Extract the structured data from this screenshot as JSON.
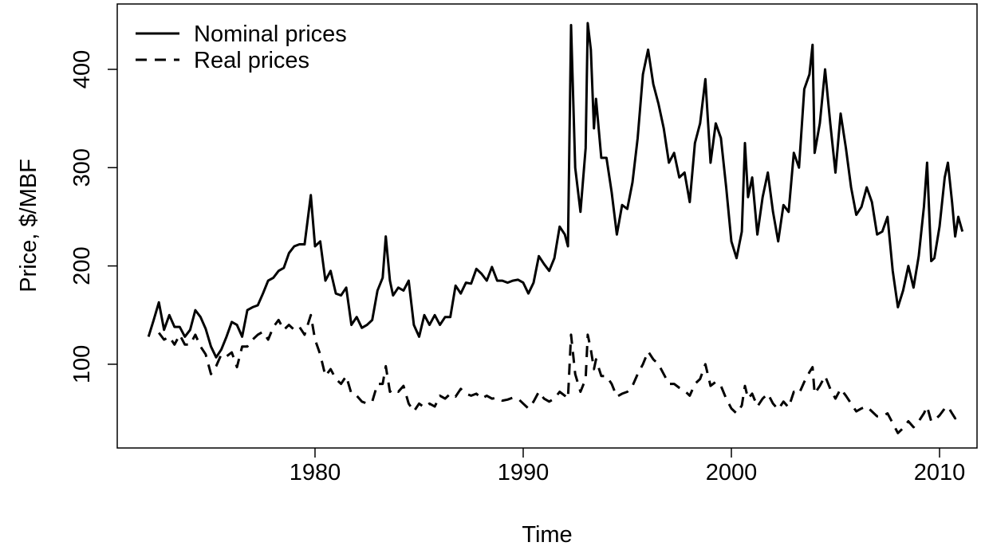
{
  "chart_data": {
    "type": "line",
    "x_label": "Time",
    "y_label": "Price, $/MBF",
    "xlim": [
      1970.5,
      2011.8
    ],
    "ylim": [
      14.8,
      466.5
    ],
    "xticks": [
      1980,
      1990,
      2000,
      2010
    ],
    "yticks": [
      100,
      200,
      300,
      400
    ],
    "legend": "top-left",
    "grid": false,
    "x": [
      1972,
      1972.25,
      1972.5,
      1972.75,
      1973,
      1973.25,
      1973.5,
      1973.75,
      1974,
      1974.25,
      1974.5,
      1974.75,
      1975,
      1975.25,
      1975.5,
      1975.75,
      1976,
      1976.25,
      1976.5,
      1976.75,
      1977,
      1977.25,
      1977.5,
      1977.75,
      1978,
      1978.25,
      1978.5,
      1978.75,
      1979,
      1979.25,
      1979.5,
      1979.8,
      1980,
      1980.25,
      1980.5,
      1980.75,
      1981,
      1981.25,
      1981.5,
      1981.75,
      1982,
      1982.25,
      1982.5,
      1982.75,
      1983,
      1983.25,
      1983.4,
      1983.6,
      1983.75,
      1984,
      1984.25,
      1984.5,
      1984.75,
      1985,
      1985.25,
      1985.5,
      1985.75,
      1986,
      1986.25,
      1986.5,
      1986.75,
      1987,
      1987.25,
      1987.5,
      1987.75,
      1988,
      1988.25,
      1988.5,
      1988.75,
      1989,
      1989.25,
      1989.5,
      1989.75,
      1990,
      1990.25,
      1990.5,
      1990.75,
      1991,
      1991.25,
      1991.5,
      1991.75,
      1992,
      1992.15,
      1992.3,
      1992.5,
      1992.75,
      1993,
      1993.1,
      1993.25,
      1993.4,
      1993.5,
      1993.75,
      1994,
      1994.25,
      1994.5,
      1994.75,
      1995,
      1995.25,
      1995.5,
      1995.75,
      1996,
      1996.25,
      1996.5,
      1996.75,
      1997,
      1997.25,
      1997.5,
      1997.75,
      1998,
      1998.25,
      1998.5,
      1998.75,
      1999,
      1999.25,
      1999.5,
      1999.75,
      2000,
      2000.25,
      2000.5,
      2000.65,
      2000.8,
      2001,
      2001.25,
      2001.5,
      2001.75,
      2002,
      2002.25,
      2002.5,
      2002.75,
      2003,
      2003.25,
      2003.5,
      2003.75,
      2003.9,
      2004,
      2004.25,
      2004.5,
      2004.75,
      2005,
      2005.25,
      2005.5,
      2005.75,
      2006,
      2006.25,
      2006.5,
      2006.75,
      2007,
      2007.25,
      2007.5,
      2007.75,
      2008,
      2008.25,
      2008.5,
      2008.75,
      2009,
      2009.25,
      2009.4,
      2009.6,
      2009.75,
      2010,
      2010.25,
      2010.4,
      2010.6,
      2010.75,
      2010.9,
      2011.1
    ],
    "series": [
      {
        "name": "Nominal prices",
        "color": "#000000",
        "linestyle": "solid",
        "values": [
          128,
          145,
          163,
          135,
          150,
          138,
          138,
          128,
          135,
          155,
          148,
          136,
          118,
          107,
          115,
          128,
          143,
          140,
          128,
          155,
          158,
          160,
          172,
          185,
          188,
          195,
          198,
          213,
          220,
          222,
          222,
          272,
          220,
          225,
          185,
          195,
          172,
          170,
          178,
          140,
          148,
          137,
          140,
          145,
          175,
          188,
          230,
          185,
          170,
          178,
          175,
          185,
          140,
          128,
          150,
          140,
          150,
          140,
          148,
          148,
          180,
          172,
          183,
          182,
          197,
          192,
          185,
          199,
          185,
          185,
          183,
          185,
          186,
          183,
          172,
          183,
          210,
          202,
          195,
          208,
          240,
          232,
          220,
          445,
          300,
          255,
          320,
          447,
          420,
          340,
          370,
          310,
          310,
          275,
          232,
          262,
          258,
          285,
          330,
          395,
          420,
          385,
          365,
          340,
          305,
          315,
          290,
          295,
          265,
          325,
          345,
          390,
          305,
          345,
          330,
          280,
          225,
          208,
          235,
          325,
          270,
          290,
          232,
          270,
          295,
          255,
          225,
          262,
          255,
          315,
          300,
          380,
          395,
          425,
          315,
          345,
          400,
          345,
          295,
          355,
          320,
          280,
          252,
          260,
          280,
          265,
          232,
          235,
          250,
          195,
          158,
          175,
          200,
          178,
          210,
          260,
          305,
          205,
          208,
          240,
          290,
          305,
          265,
          230,
          250,
          235
        ]
      },
      {
        "name": "Real prices",
        "color": "#000000",
        "linestyle": "dashed",
        "values": [
          null,
          null,
          132,
          125,
          128,
          120,
          130,
          120,
          120,
          130,
          118,
          110,
          90,
          98,
          110,
          108,
          112,
          97,
          118,
          118,
          125,
          130,
          133,
          125,
          138,
          145,
          135,
          140,
          135,
          138,
          130,
          150,
          125,
          110,
          88,
          95,
          85,
          80,
          88,
          70,
          68,
          62,
          60,
          62,
          80,
          80,
          98,
          72,
          75,
          72,
          78,
          60,
          52,
          60,
          56,
          60,
          57,
          68,
          65,
          70,
          67,
          75,
          70,
          68,
          70,
          65,
          68,
          65,
          66,
          63,
          64,
          66,
          65,
          60,
          55,
          62,
          72,
          65,
          62,
          65,
          72,
          68,
          65,
          130,
          90,
          72,
          85,
          130,
          115,
          95,
          105,
          88,
          88,
          80,
          67,
          70,
          72,
          78,
          90,
          100,
          113,
          105,
          100,
          90,
          80,
          80,
          76,
          73,
          68,
          80,
          85,
          100,
          78,
          82,
          78,
          65,
          55,
          50,
          58,
          78,
          65,
          70,
          57,
          65,
          70,
          60,
          54,
          62,
          56,
          72,
          70,
          82,
          92,
          97,
          70,
          78,
          88,
          75,
          65,
          75,
          68,
          60,
          52,
          55,
          57,
          52,
          47,
          47,
          50,
          40,
          30,
          35,
          42,
          36,
          42,
          50,
          57,
          42,
          43,
          48,
          55,
          57,
          50,
          45,
          47,
          45
        ]
      }
    ]
  }
}
